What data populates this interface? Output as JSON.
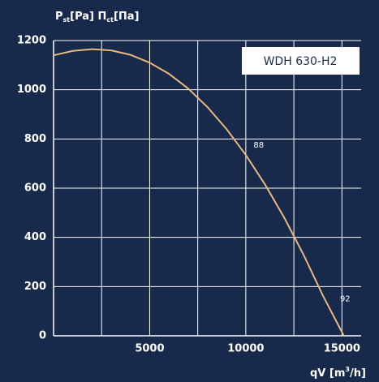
{
  "chart_data": {
    "type": "line",
    "y_label_parts": [
      "P",
      "st",
      "[Pa] П",
      "ct",
      "[Па]"
    ],
    "x_label_parts": [
      "qV [m",
      "3",
      "/h]"
    ],
    "legend_title": "WDH 630-H2",
    "xlim": [
      0,
      16000
    ],
    "ylim": [
      0,
      1200
    ],
    "xticks": [
      5000,
      10000,
      15000
    ],
    "x_minor_grid": [
      2500,
      7500,
      12500
    ],
    "yticks": [
      0,
      200,
      400,
      600,
      800,
      1000,
      1200
    ],
    "grid": true,
    "series": [
      {
        "color": "#e8b87c",
        "x": [
          0,
          1000,
          2000,
          3000,
          4000,
          5000,
          6000,
          7000,
          8000,
          9000,
          10000,
          11000,
          12000,
          13000,
          14000,
          15100
        ],
        "values": [
          1140,
          1158,
          1165,
          1160,
          1142,
          1110,
          1065,
          1005,
          930,
          840,
          735,
          615,
          480,
          330,
          165,
          0
        ]
      }
    ],
    "annotations": [
      {
        "text": "88",
        "x": 10400,
        "y": 775
      },
      {
        "text": "92",
        "x": 14900,
        "y": 150
      }
    ]
  }
}
